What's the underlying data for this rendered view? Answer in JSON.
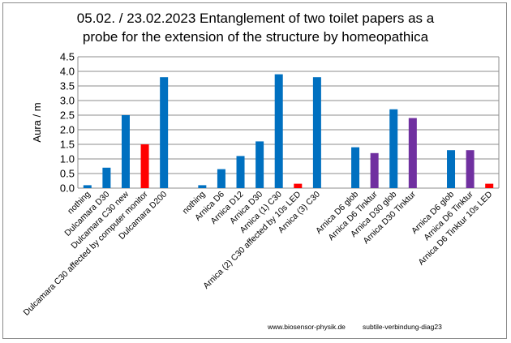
{
  "chart_data": {
    "type": "bar",
    "title_lines": [
      "05.02. /  23.02.2023 Entanglement of two toilet papers as a",
      "probe for the extension of the structure by homeopathica"
    ],
    "ylabel": "Aura / m",
    "ylim": [
      0,
      4.5
    ],
    "yticks": [
      "0.0",
      "0.5",
      "1.0",
      "1.5",
      "2.0",
      "2.5",
      "3.0",
      "3.5",
      "4.0",
      "4.5"
    ],
    "grid": "horizontal",
    "colors": {
      "blue": "#0070c0",
      "red": "#ff0000",
      "purple": "#7030a0",
      "grid": "#8c8c8c"
    },
    "categories": [
      "nothing",
      "Dulcamara D30",
      "Dulcamara C30 new",
      "Dulcamara C30 affected by computer monitor",
      "Dulcamara D200",
      "",
      "nothing",
      "Arnica D6",
      "Arnica D12",
      "Arnica D30",
      "Arnica (1) C30",
      "Arnica (2) C30 affected by 10s LED",
      "Arnica (3) C30",
      "",
      "Arnica D6  glob",
      "Arnica D6 Tinktur",
      "Arnica D30 glob",
      "Arnica D30 Tinktur",
      "",
      "Arnica D6 glob",
      "Arnica D6 Tinktur",
      "Arnica D6 Tinktur 10s LED"
    ],
    "values": [
      0.1,
      0.7,
      2.5,
      1.5,
      3.8,
      null,
      0.1,
      0.65,
      1.1,
      1.6,
      3.9,
      0.15,
      3.8,
      null,
      1.4,
      1.2,
      2.7,
      2.4,
      null,
      1.3,
      1.3,
      0.15
    ],
    "bar_colors": [
      "blue",
      "blue",
      "blue",
      "red",
      "blue",
      null,
      "blue",
      "blue",
      "blue",
      "blue",
      "blue",
      "red",
      "blue",
      null,
      "blue",
      "purple",
      "blue",
      "purple",
      null,
      "blue",
      "purple",
      "red"
    ]
  },
  "footer": {
    "website": "www.biosensor-physik.de",
    "diagram_id": "subtile-verbindung-diag23"
  }
}
